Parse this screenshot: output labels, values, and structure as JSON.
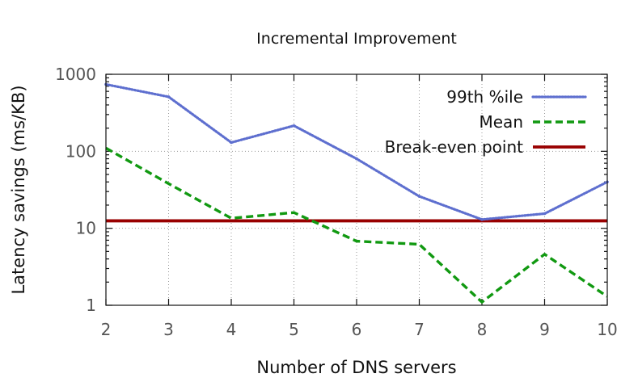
{
  "chart_data": {
    "type": "line",
    "title": "Incremental Improvement",
    "xlabel": "Number of DNS servers",
    "ylabel": "Latency savings (ms/KB)",
    "y_scale": "log",
    "ylim": [
      1,
      1000
    ],
    "xlim": [
      2,
      10
    ],
    "grid": true,
    "legend_position": "top-right",
    "x": [
      2,
      3,
      4,
      5,
      6,
      7,
      8,
      9,
      10
    ],
    "x_tick_labels": [
      "2",
      "3",
      "4",
      "5",
      "6",
      "7",
      "8",
      "9",
      "10"
    ],
    "y_ticks": [
      1,
      10,
      100,
      1000
    ],
    "y_tick_labels": [
      "1",
      "10",
      "100",
      "1000"
    ],
    "series": [
      {
        "name": "99th %ile",
        "style": "dotted",
        "color": "#5e6fcf",
        "values": [
          740,
          510,
          130,
          215,
          80,
          26,
          13,
          15.5,
          40
        ]
      },
      {
        "name": "Mean",
        "style": "dashed",
        "color": "#119911",
        "values": [
          110,
          38,
          13.5,
          16,
          6.8,
          6.2,
          1.1,
          4.6,
          1.3
        ]
      },
      {
        "name": "Break-even point",
        "style": "solid",
        "color": "#990000",
        "values": [
          12.5,
          12.5,
          12.5,
          12.5,
          12.5,
          12.5,
          12.5,
          12.5,
          12.5
        ]
      }
    ]
  }
}
